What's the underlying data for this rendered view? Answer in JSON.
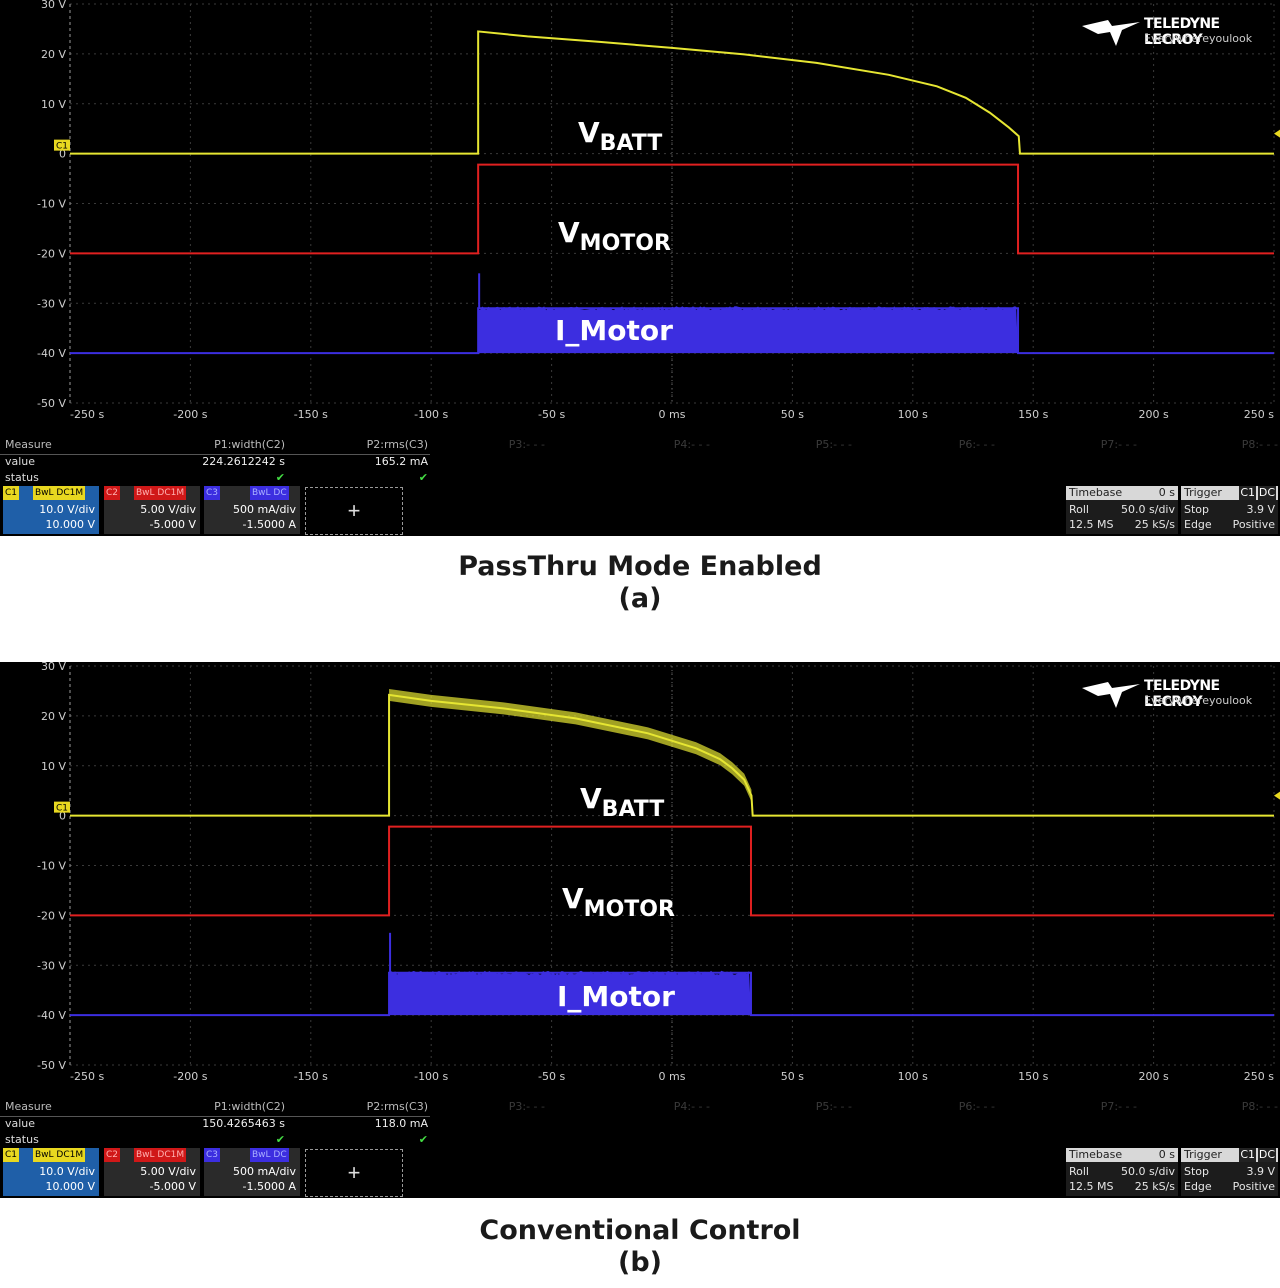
{
  "chart_data": [
    {
      "type": "line",
      "title": "PassThru Mode Enabled",
      "subtitle": "(a)",
      "xlim": [
        -250,
        250
      ],
      "ylim": [
        -50,
        30
      ],
      "grid": true,
      "x_ticks": [
        "-250 s",
        "-200 s",
        "-150 s",
        "-100 s",
        "-50 s",
        "0 ms",
        "50 s",
        "100 s",
        "150 s",
        "200 s",
        "250 s"
      ],
      "y_ticks": [
        "30 V",
        "20 V",
        "10 V",
        "0",
        "-10 V",
        "-20 V",
        "-30 V",
        "-40 V",
        "-50 V"
      ],
      "series": [
        {
          "name": "VBATT",
          "label_main": "V",
          "label_sub": "BATT",
          "color": "#e6e632",
          "x": [
            -250,
            -80.5,
            -80.5,
            -60,
            -30,
            0,
            30,
            60,
            90,
            110,
            122,
            132,
            140,
            144,
            144.5,
            250
          ],
          "y": [
            0,
            0,
            24.5,
            23.5,
            22.4,
            21.2,
            19.9,
            18.2,
            15.8,
            13.5,
            11.2,
            8.2,
            5.2,
            3.5,
            0,
            0
          ]
        },
        {
          "name": "VMOTOR",
          "label_main": "V",
          "label_sub": "MOTOR",
          "color": "#e02020",
          "x": [
            -250,
            -80.5,
            -80.5,
            143.7,
            143.7,
            250
          ],
          "y": [
            -20,
            -20,
            -2.2,
            -2.2,
            -20,
            -20
          ]
        },
        {
          "name": "I_Motor",
          "label_main": "I_Motor",
          "color": "#3c2ee0",
          "x": [
            -250,
            -80.5,
            -80.5,
            143.7,
            143.7,
            250
          ],
          "y": [
            -40,
            -40,
            -31,
            -31,
            -40,
            -40
          ],
          "band_bottom": -40,
          "spike_top": -24
        }
      ],
      "measurements": {
        "header": "Measure",
        "row_value": "value",
        "row_status": "status",
        "p1_name": "P1:width(C2)",
        "p1_value": "224.2612242 s",
        "p2_name": "P2:rms(C3)",
        "p2_value": "165.2 mA",
        "p3": "P3:- - -",
        "p4": "P4:- - -",
        "p5": "P5:- - -",
        "p6": "P6:- - -",
        "p7": "P7:- - -",
        "p8": "P8:- - -",
        "status_mark": "✔"
      }
    },
    {
      "type": "line",
      "title": "Conventional Control",
      "subtitle": "(b)",
      "xlim": [
        -250,
        250
      ],
      "ylim": [
        -50,
        30
      ],
      "grid": true,
      "x_ticks": [
        "-250 s",
        "-200 s",
        "-150 s",
        "-100 s",
        "-50 s",
        "0 ms",
        "50 s",
        "100 s",
        "150 s",
        "200 s",
        "250 s"
      ],
      "y_ticks": [
        "30 V",
        "20 V",
        "10 V",
        "0",
        "-10 V",
        "-20 V",
        "-30 V",
        "-40 V",
        "-50 V"
      ],
      "series": [
        {
          "name": "VBATT",
          "label_main": "V",
          "label_sub": "BATT",
          "color": "#e6e632",
          "x": [
            -250,
            -117.5,
            -117.5,
            -100,
            -70,
            -40,
            -10,
            10,
            20,
            25,
            30,
            33,
            33.5,
            250
          ],
          "y": [
            0,
            0,
            24.2,
            23,
            21.5,
            19.5,
            16.5,
            13.5,
            11.3,
            9.5,
            7.2,
            4.0,
            0,
            0
          ],
          "noise": 1.2
        },
        {
          "name": "VMOTOR",
          "label_main": "V",
          "label_sub": "MOTOR",
          "color": "#e02020",
          "x": [
            -250,
            -117.5,
            -117.5,
            32.8,
            32.8,
            250
          ],
          "y": [
            -20,
            -20,
            -2.2,
            -2.2,
            -20,
            -20
          ]
        },
        {
          "name": "I_Motor",
          "label_main": "I_Motor",
          "color": "#3c2ee0",
          "x": [
            -250,
            -117.5,
            -117.5,
            32.8,
            32.8,
            250
          ],
          "y": [
            -40,
            -40,
            -31.5,
            -31.5,
            -40,
            -40
          ],
          "band_bottom": -40,
          "spike_top": -23.5
        }
      ],
      "measurements": {
        "header": "Measure",
        "row_value": "value",
        "row_status": "status",
        "p1_name": "P1:width(C2)",
        "p1_value": "150.4265463 s",
        "p2_name": "P2:rms(C3)",
        "p2_value": "118.0 mA",
        "p3": "P3:- - -",
        "p4": "P4:- - -",
        "p5": "P5:- - -",
        "p6": "P6:- - -",
        "p7": "P7:- - -",
        "p8": "P8:- - -",
        "status_mark": "✔"
      }
    }
  ],
  "channels": [
    {
      "id": "C1",
      "tags": "BwL DC1M",
      "scale": "10.0 V/div",
      "offset": "10.000 V",
      "color": "#e8d820"
    },
    {
      "id": "C2",
      "tags": "BwL DC1M",
      "scale": "5.00 V/div",
      "offset": "-5.000 V",
      "color": "#e02020"
    },
    {
      "id": "C3",
      "tags": "BwL DC",
      "scale": "500 mA/div",
      "offset": "-1.5000 A",
      "color": "#3c2ee0"
    }
  ],
  "add_button": "+",
  "timebase": {
    "label": "Timebase",
    "delay": "0 s",
    "mode": "Roll",
    "scale": "50.0 s/div",
    "samples": "12.5 MS",
    "rate": "25 kS/s"
  },
  "trigger": {
    "label": "Trigger",
    "c1": "C1",
    "dc": "DC",
    "mode": "Stop",
    "level": "3.9 V",
    "type": "Edge",
    "slope": "Positive"
  },
  "logo": {
    "line1": "TELEDYNE LECROY",
    "line2": "Everywhereyoulook"
  },
  "ch_marker": "C1"
}
